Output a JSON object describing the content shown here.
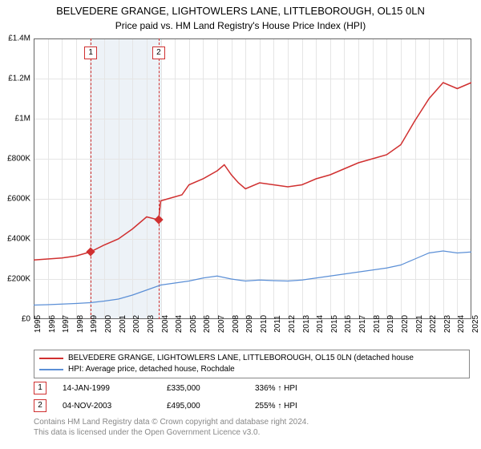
{
  "title": "BELVEDERE GRANGE, LIGHTOWLERS LANE, LITTLEBOROUGH, OL15 0LN",
  "subtitle": "Price paid vs. HM Land Registry's House Price Index (HPI)",
  "chart": {
    "type": "line",
    "xlim": [
      1995,
      2025
    ],
    "ylim": [
      0,
      1400000
    ],
    "ytick_step": 200000,
    "yticks": [
      {
        "v": 0,
        "label": "£0"
      },
      {
        "v": 200000,
        "label": "£200K"
      },
      {
        "v": 400000,
        "label": "£400K"
      },
      {
        "v": 600000,
        "label": "£600K"
      },
      {
        "v": 800000,
        "label": "£800K"
      },
      {
        "v": 1000000,
        "label": "£1M"
      },
      {
        "v": 1200000,
        "label": "£1.2M"
      },
      {
        "v": 1400000,
        "label": "£1.4M"
      }
    ],
    "xticks": [
      1995,
      1996,
      1997,
      1998,
      1999,
      2000,
      2001,
      2002,
      2003,
      2004,
      2004,
      2005,
      2006,
      2007,
      2008,
      2009,
      2010,
      2011,
      2012,
      2013,
      2014,
      2015,
      2016,
      2017,
      2018,
      2019,
      2020,
      2021,
      2022,
      2023,
      2024,
      2025
    ],
    "grid_color": "#e5e5e5",
    "band_years": [
      1999,
      2000,
      2001,
      2002,
      2003
    ],
    "band_color": "#edf2f7",
    "markers": [
      {
        "n": "1",
        "year": 1999.04,
        "value": 335000
      },
      {
        "n": "2",
        "year": 2003.85,
        "value": 495000
      }
    ],
    "series": [
      {
        "name": "property",
        "label": "BELVEDERE GRANGE, LIGHTOWLERS LANE, LITTLEBOROUGH, OL15 0LN (detached house",
        "color": "#d03030",
        "width": 1.5,
        "data": [
          [
            1995,
            295000
          ],
          [
            1996,
            300000
          ],
          [
            1997,
            305000
          ],
          [
            1998,
            315000
          ],
          [
            1999,
            335000
          ],
          [
            2000,
            370000
          ],
          [
            2001,
            400000
          ],
          [
            2002,
            450000
          ],
          [
            2003,
            510000
          ],
          [
            2003.85,
            495000
          ],
          [
            2004,
            590000
          ],
          [
            2004.5,
            620000
          ],
          [
            2005,
            670000
          ],
          [
            2006,
            700000
          ],
          [
            2007,
            740000
          ],
          [
            2007.5,
            770000
          ],
          [
            2008,
            720000
          ],
          [
            2008.5,
            680000
          ],
          [
            2009,
            650000
          ],
          [
            2010,
            680000
          ],
          [
            2011,
            670000
          ],
          [
            2012,
            660000
          ],
          [
            2013,
            670000
          ],
          [
            2014,
            700000
          ],
          [
            2015,
            720000
          ],
          [
            2016,
            750000
          ],
          [
            2017,
            780000
          ],
          [
            2018,
            800000
          ],
          [
            2019,
            820000
          ],
          [
            2020,
            870000
          ],
          [
            2021,
            990000
          ],
          [
            2022,
            1100000
          ],
          [
            2023,
            1180000
          ],
          [
            2024,
            1150000
          ],
          [
            2025,
            1180000
          ]
        ]
      },
      {
        "name": "hpi",
        "label": "HPI: Average price, detached house, Rochdale",
        "color": "#5b8fd6",
        "width": 1.2,
        "data": [
          [
            1995,
            70000
          ],
          [
            1996,
            72000
          ],
          [
            1997,
            75000
          ],
          [
            1998,
            78000
          ],
          [
            1999,
            82000
          ],
          [
            2000,
            90000
          ],
          [
            2001,
            100000
          ],
          [
            2002,
            120000
          ],
          [
            2003,
            145000
          ],
          [
            2004,
            170000
          ],
          [
            2005,
            190000
          ],
          [
            2006,
            205000
          ],
          [
            2007,
            215000
          ],
          [
            2008,
            200000
          ],
          [
            2009,
            190000
          ],
          [
            2010,
            195000
          ],
          [
            2011,
            192000
          ],
          [
            2012,
            190000
          ],
          [
            2013,
            195000
          ],
          [
            2014,
            205000
          ],
          [
            2015,
            215000
          ],
          [
            2016,
            225000
          ],
          [
            2017,
            235000
          ],
          [
            2018,
            245000
          ],
          [
            2019,
            255000
          ],
          [
            2020,
            270000
          ],
          [
            2021,
            300000
          ],
          [
            2022,
            330000
          ],
          [
            2023,
            340000
          ],
          [
            2024,
            330000
          ],
          [
            2025,
            335000
          ]
        ]
      }
    ]
  },
  "legend": {
    "items": [
      {
        "color": "#d03030",
        "label": "BELVEDERE GRANGE, LIGHTOWLERS LANE, LITTLEBOROUGH, OL15 0LN (detached house"
      },
      {
        "color": "#5b8fd6",
        "label": "HPI: Average price, detached house, Rochdale"
      }
    ]
  },
  "footnotes": [
    {
      "n": "1",
      "date": "14-JAN-1999",
      "price": "£335,000",
      "pct": "336% ↑ HPI"
    },
    {
      "n": "2",
      "date": "04-NOV-2003",
      "price": "£495,000",
      "pct": "255% ↑ HPI"
    }
  ],
  "attribution": {
    "line1": "Contains HM Land Registry data © Crown copyright and database right 2024.",
    "line2": "This data is licensed under the Open Government Licence v3.0."
  }
}
